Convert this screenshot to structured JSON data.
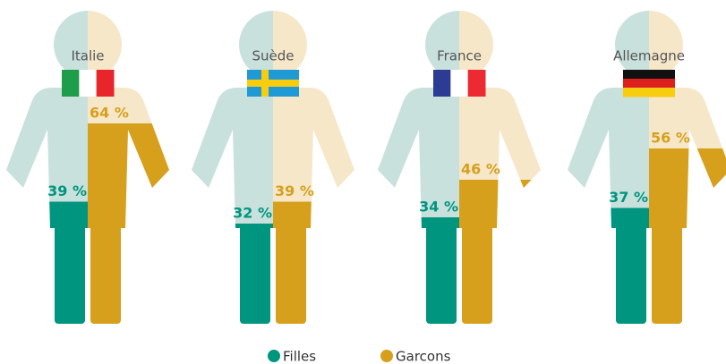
{
  "chart_data": {
    "type": "pictogram",
    "categories": [
      "Italie",
      "Suède",
      "France",
      "Allemagne"
    ],
    "ylim": [
      0,
      100
    ],
    "series": [
      {
        "name": "Filles",
        "color": "#00957f",
        "light": "#c9e1dd",
        "values": [
          39,
          32,
          34,
          37
        ],
        "value_labels": [
          "39 %",
          "32 %",
          "34 %",
          "37 %"
        ]
      },
      {
        "name": "Garcons",
        "color": "#d6a01c",
        "light": "#f6e7c9",
        "values": [
          64,
          39,
          46,
          56
        ],
        "value_labels": [
          "64 %",
          "39 %",
          "46 %",
          "56 %"
        ]
      }
    ]
  }
}
